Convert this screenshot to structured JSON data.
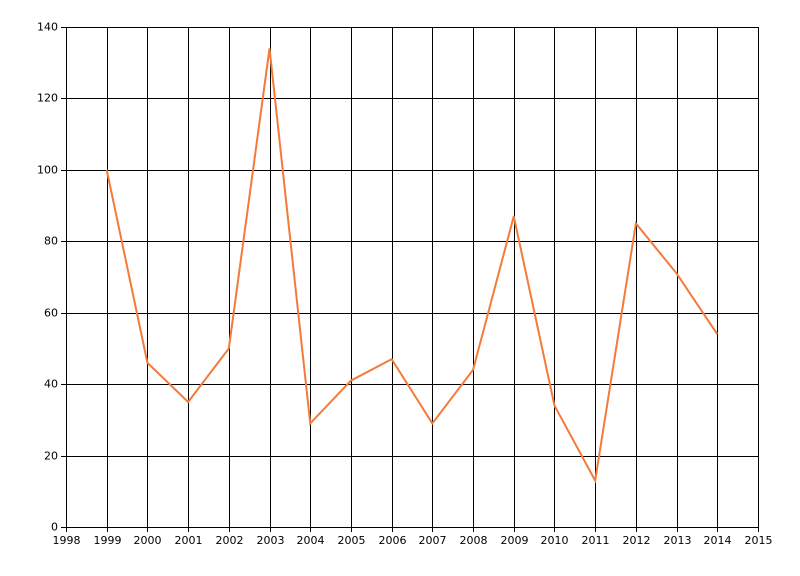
{
  "chart_data": {
    "type": "line",
    "x": [
      1999,
      2000,
      2001,
      2002,
      2003,
      2004,
      2005,
      2006,
      2007,
      2008,
      2009,
      2010,
      2011,
      2012,
      2013,
      2014
    ],
    "series": [
      {
        "color": "#f47a3a",
        "values": [
          100,
          46,
          35,
          50,
          134,
          29,
          41,
          47,
          29,
          44,
          87,
          34,
          13,
          85,
          71,
          54
        ]
      }
    ],
    "xlim": [
      1998,
      2015
    ],
    "xticks": [
      1998,
      1999,
      2000,
      2001,
      2002,
      2003,
      2004,
      2005,
      2006,
      2007,
      2008,
      2009,
      2010,
      2011,
      2012,
      2013,
      2014,
      2015
    ],
    "ylim": [
      0,
      140
    ],
    "yticks": [
      0,
      20,
      40,
      60,
      80,
      100,
      120,
      140
    ],
    "grid": true
  }
}
